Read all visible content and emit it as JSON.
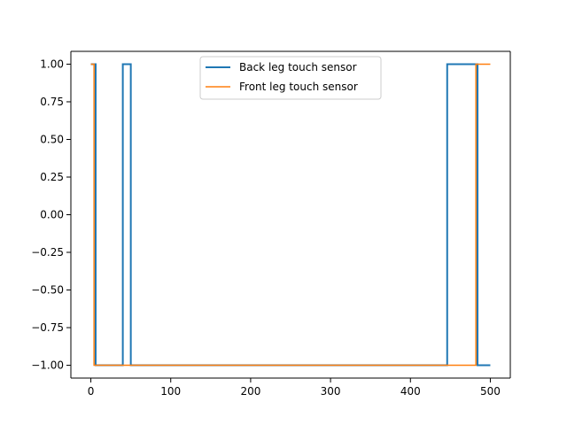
{
  "chart_data": {
    "type": "line",
    "title": "",
    "xlabel": "",
    "ylabel": "",
    "xlim": [
      -25,
      525
    ],
    "ylim": [
      -1.085,
      1.085
    ],
    "xticks": [
      0,
      100,
      200,
      300,
      400,
      500
    ],
    "xtick_labels": [
      "0",
      "100",
      "200",
      "300",
      "400",
      "500"
    ],
    "yticks": [
      1.0,
      0.75,
      0.5,
      0.25,
      0.0,
      -0.25,
      -0.5,
      -0.75,
      -1.0
    ],
    "ytick_labels": [
      "1.00",
      "0.75",
      "0.50",
      "0.25",
      "0.00",
      "−0.25",
      "−0.50",
      "−0.75",
      "−1.00"
    ],
    "grid": false,
    "legend": "upper center",
    "series": [
      {
        "name": "Back leg touch sensor",
        "color": "#1f77b4",
        "points": [
          [
            0,
            1
          ],
          [
            6,
            1
          ],
          [
            6,
            -1
          ],
          [
            40,
            -1
          ],
          [
            40,
            1
          ],
          [
            50,
            1
          ],
          [
            50,
            -1
          ],
          [
            446,
            -1
          ],
          [
            446,
            1
          ],
          [
            484,
            1
          ],
          [
            484,
            -1
          ],
          [
            500,
            -1
          ]
        ]
      },
      {
        "name": "Front leg touch sensor",
        "color": "#ff7f0e",
        "points": [
          [
            0,
            1
          ],
          [
            4,
            1
          ],
          [
            4,
            -1
          ],
          [
            482,
            -1
          ],
          [
            482,
            1
          ],
          [
            500,
            1
          ]
        ]
      }
    ]
  }
}
